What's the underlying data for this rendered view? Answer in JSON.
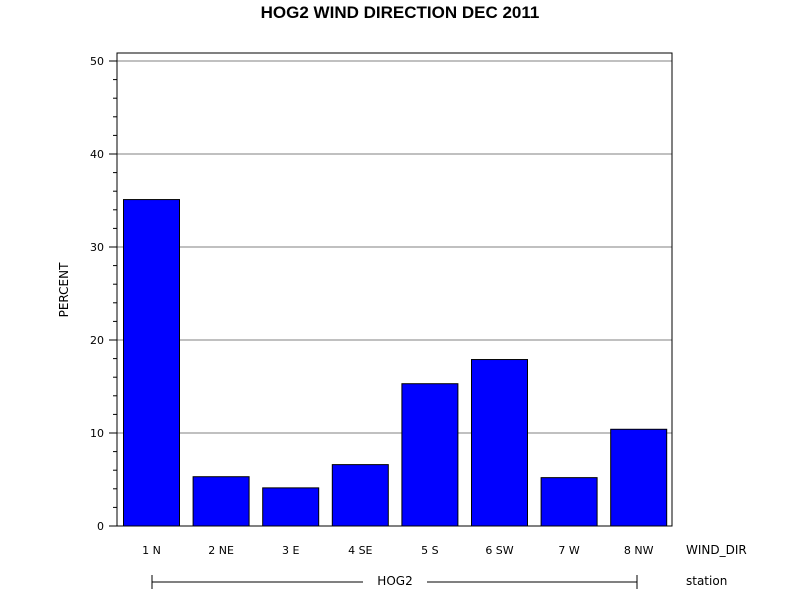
{
  "chart_data": {
    "type": "bar",
    "title": "HOG2 WIND DIRECTION DEC 2011",
    "ylabel": "PERCENT",
    "xlabel": "WIND_DIR",
    "group_label": "HOG2",
    "group_axis_label": "station",
    "categories": [
      "1 N",
      "2 NE",
      "3 E",
      "4 SE",
      "5 S",
      "6 SW",
      "7 W",
      "8 NW"
    ],
    "values": [
      35.1,
      5.3,
      4.1,
      6.6,
      15.3,
      17.9,
      5.2,
      10.4
    ],
    "ylim": [
      0,
      50
    ],
    "yticks": [
      0,
      10,
      20,
      30,
      40,
      50
    ],
    "ytick_labels": [
      "0",
      "10",
      "20",
      "30",
      "40",
      "50"
    ],
    "grid": true,
    "colors": {
      "bar": "#0000ff",
      "edge": "#000000",
      "grid": "#808080"
    }
  }
}
